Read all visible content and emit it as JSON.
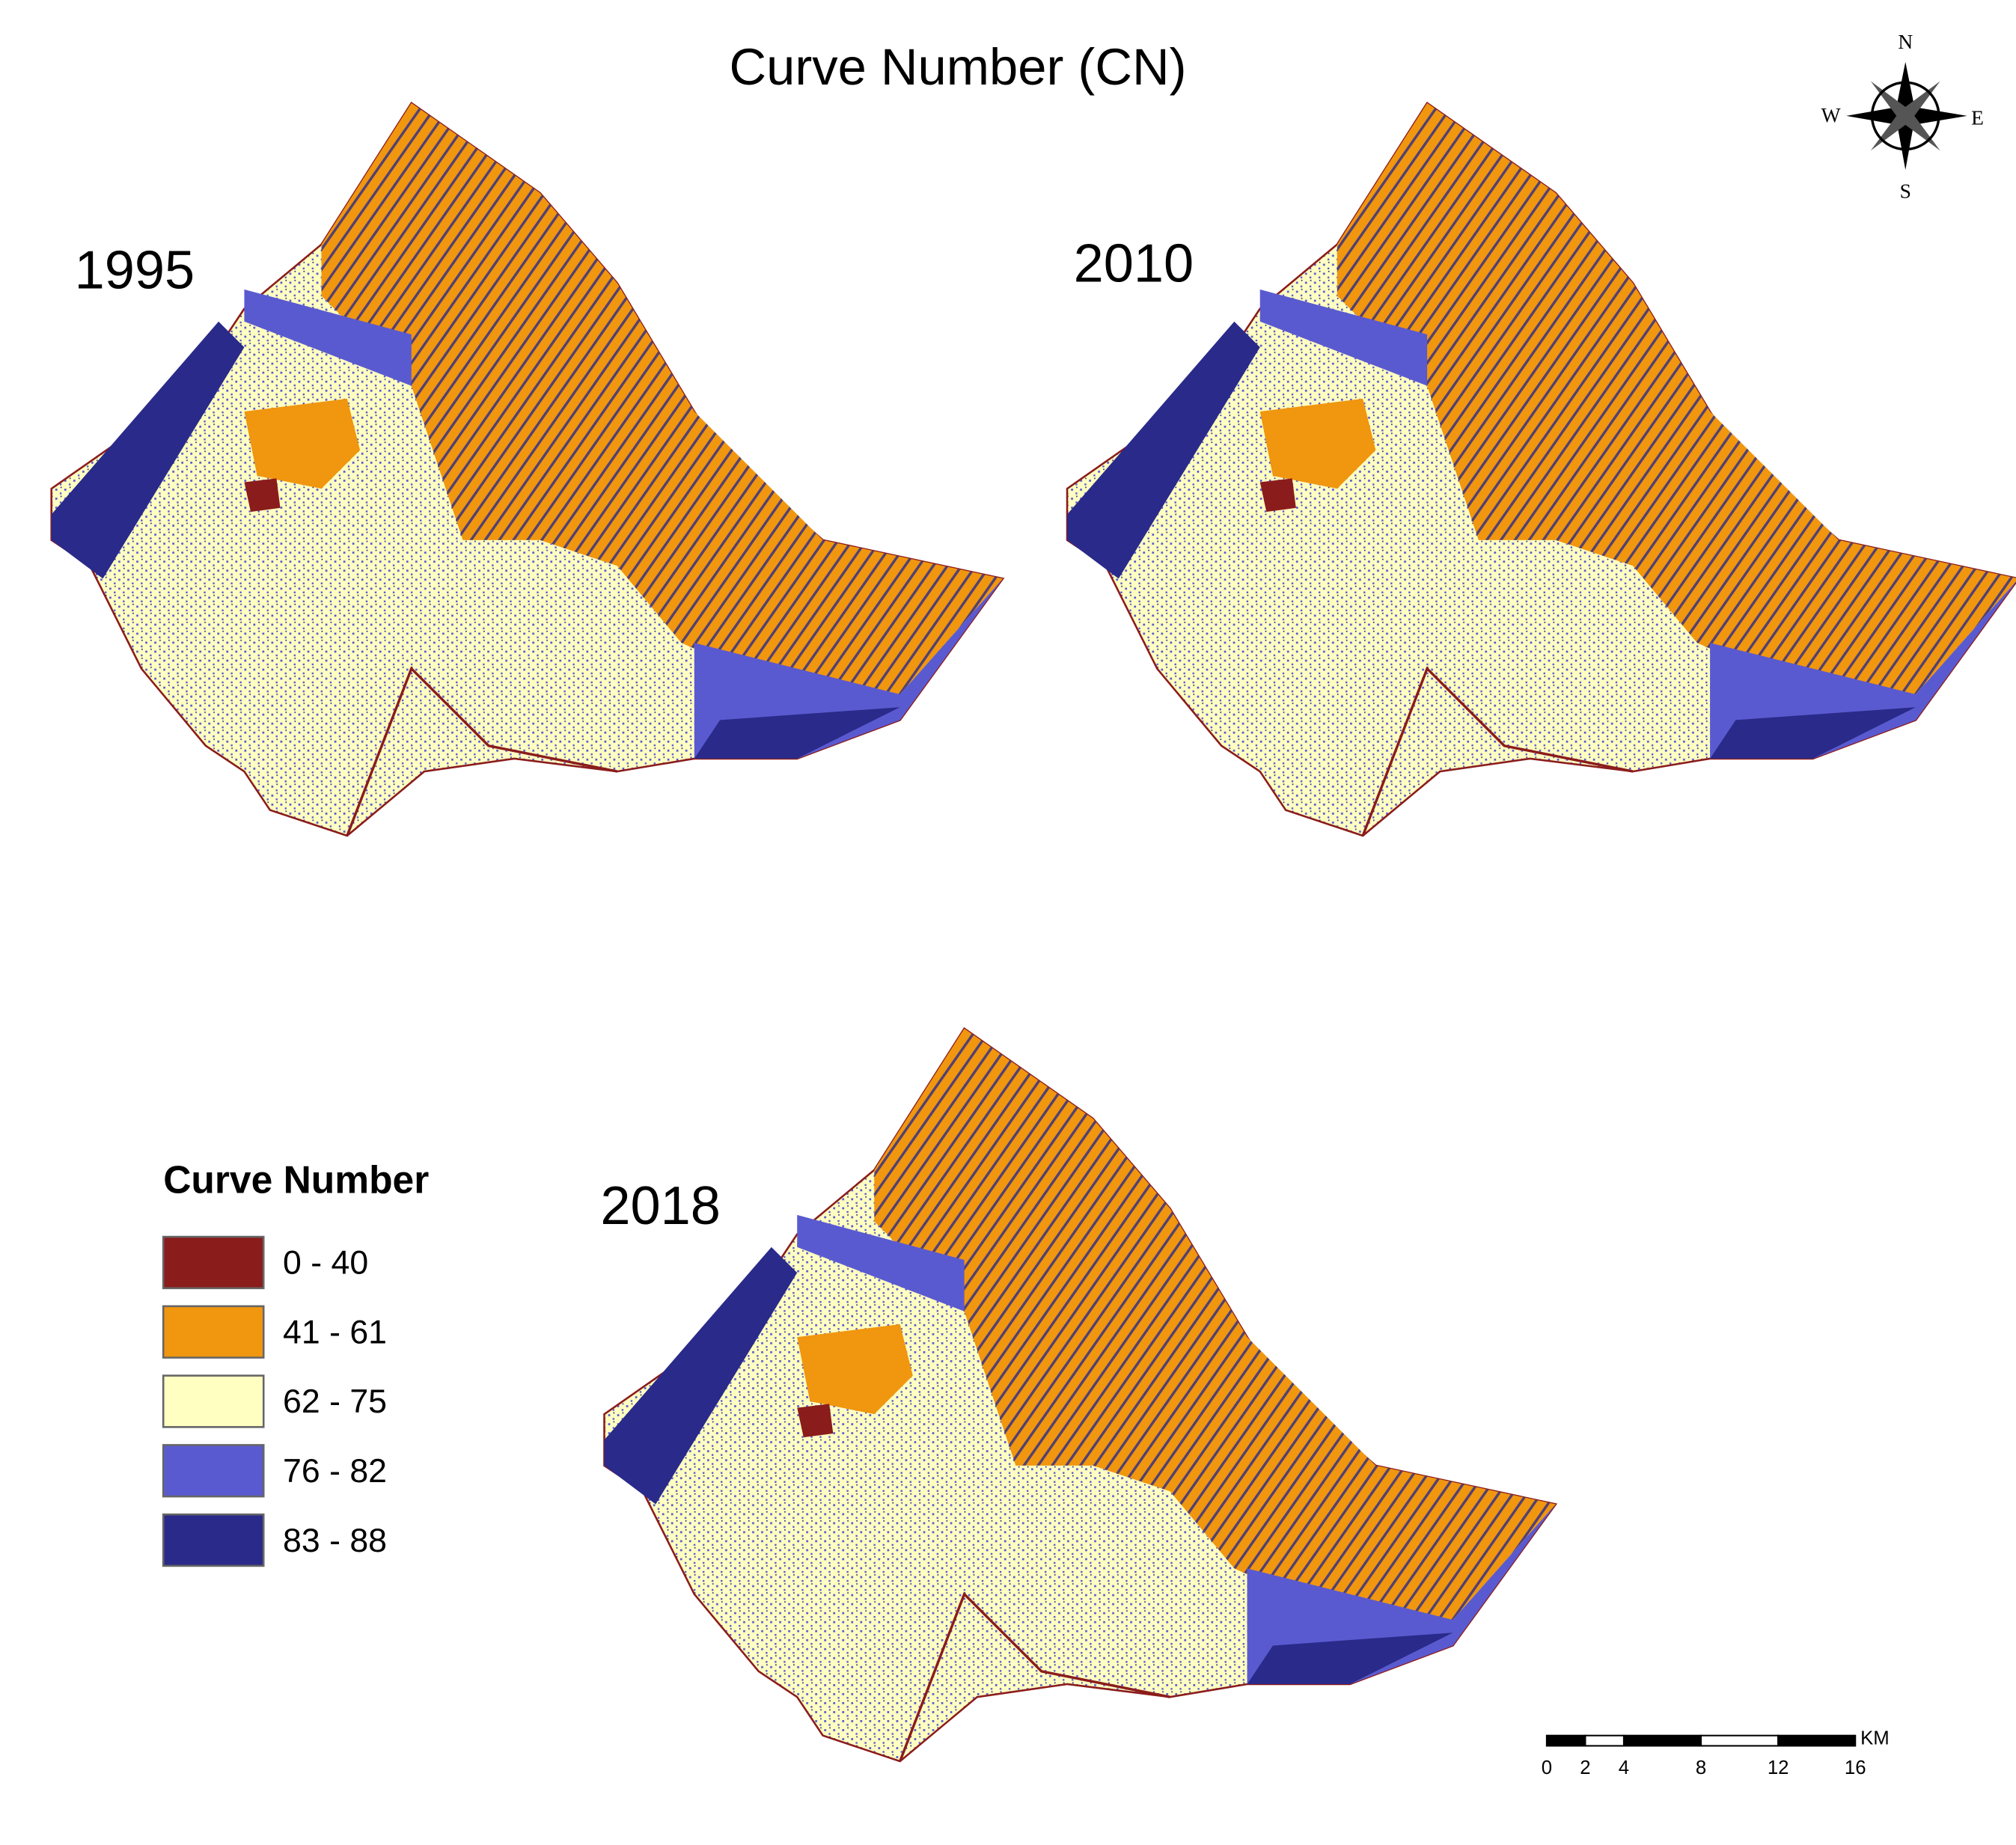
{
  "title": "Curve Number (CN)",
  "panels": [
    {
      "year": "1995"
    },
    {
      "year": "2010"
    },
    {
      "year": "2018"
    }
  ],
  "legend": {
    "title": "Curve Number",
    "items": [
      {
        "label": "0 - 40",
        "color": "#8b1c1c"
      },
      {
        "label": "41 - 61",
        "color": "#f0960f"
      },
      {
        "label": "62 - 75",
        "color": "#ffffc2"
      },
      {
        "label": "76 - 82",
        "color": "#5a5ad0"
      },
      {
        "label": "83 - 88",
        "color": "#2a2a8a"
      }
    ]
  },
  "compass": {
    "north": "N",
    "south": "S",
    "west": "W",
    "east": "E"
  },
  "scale_bar": {
    "ticks": [
      0,
      2,
      4,
      8,
      12,
      16
    ],
    "unit": "KM"
  }
}
